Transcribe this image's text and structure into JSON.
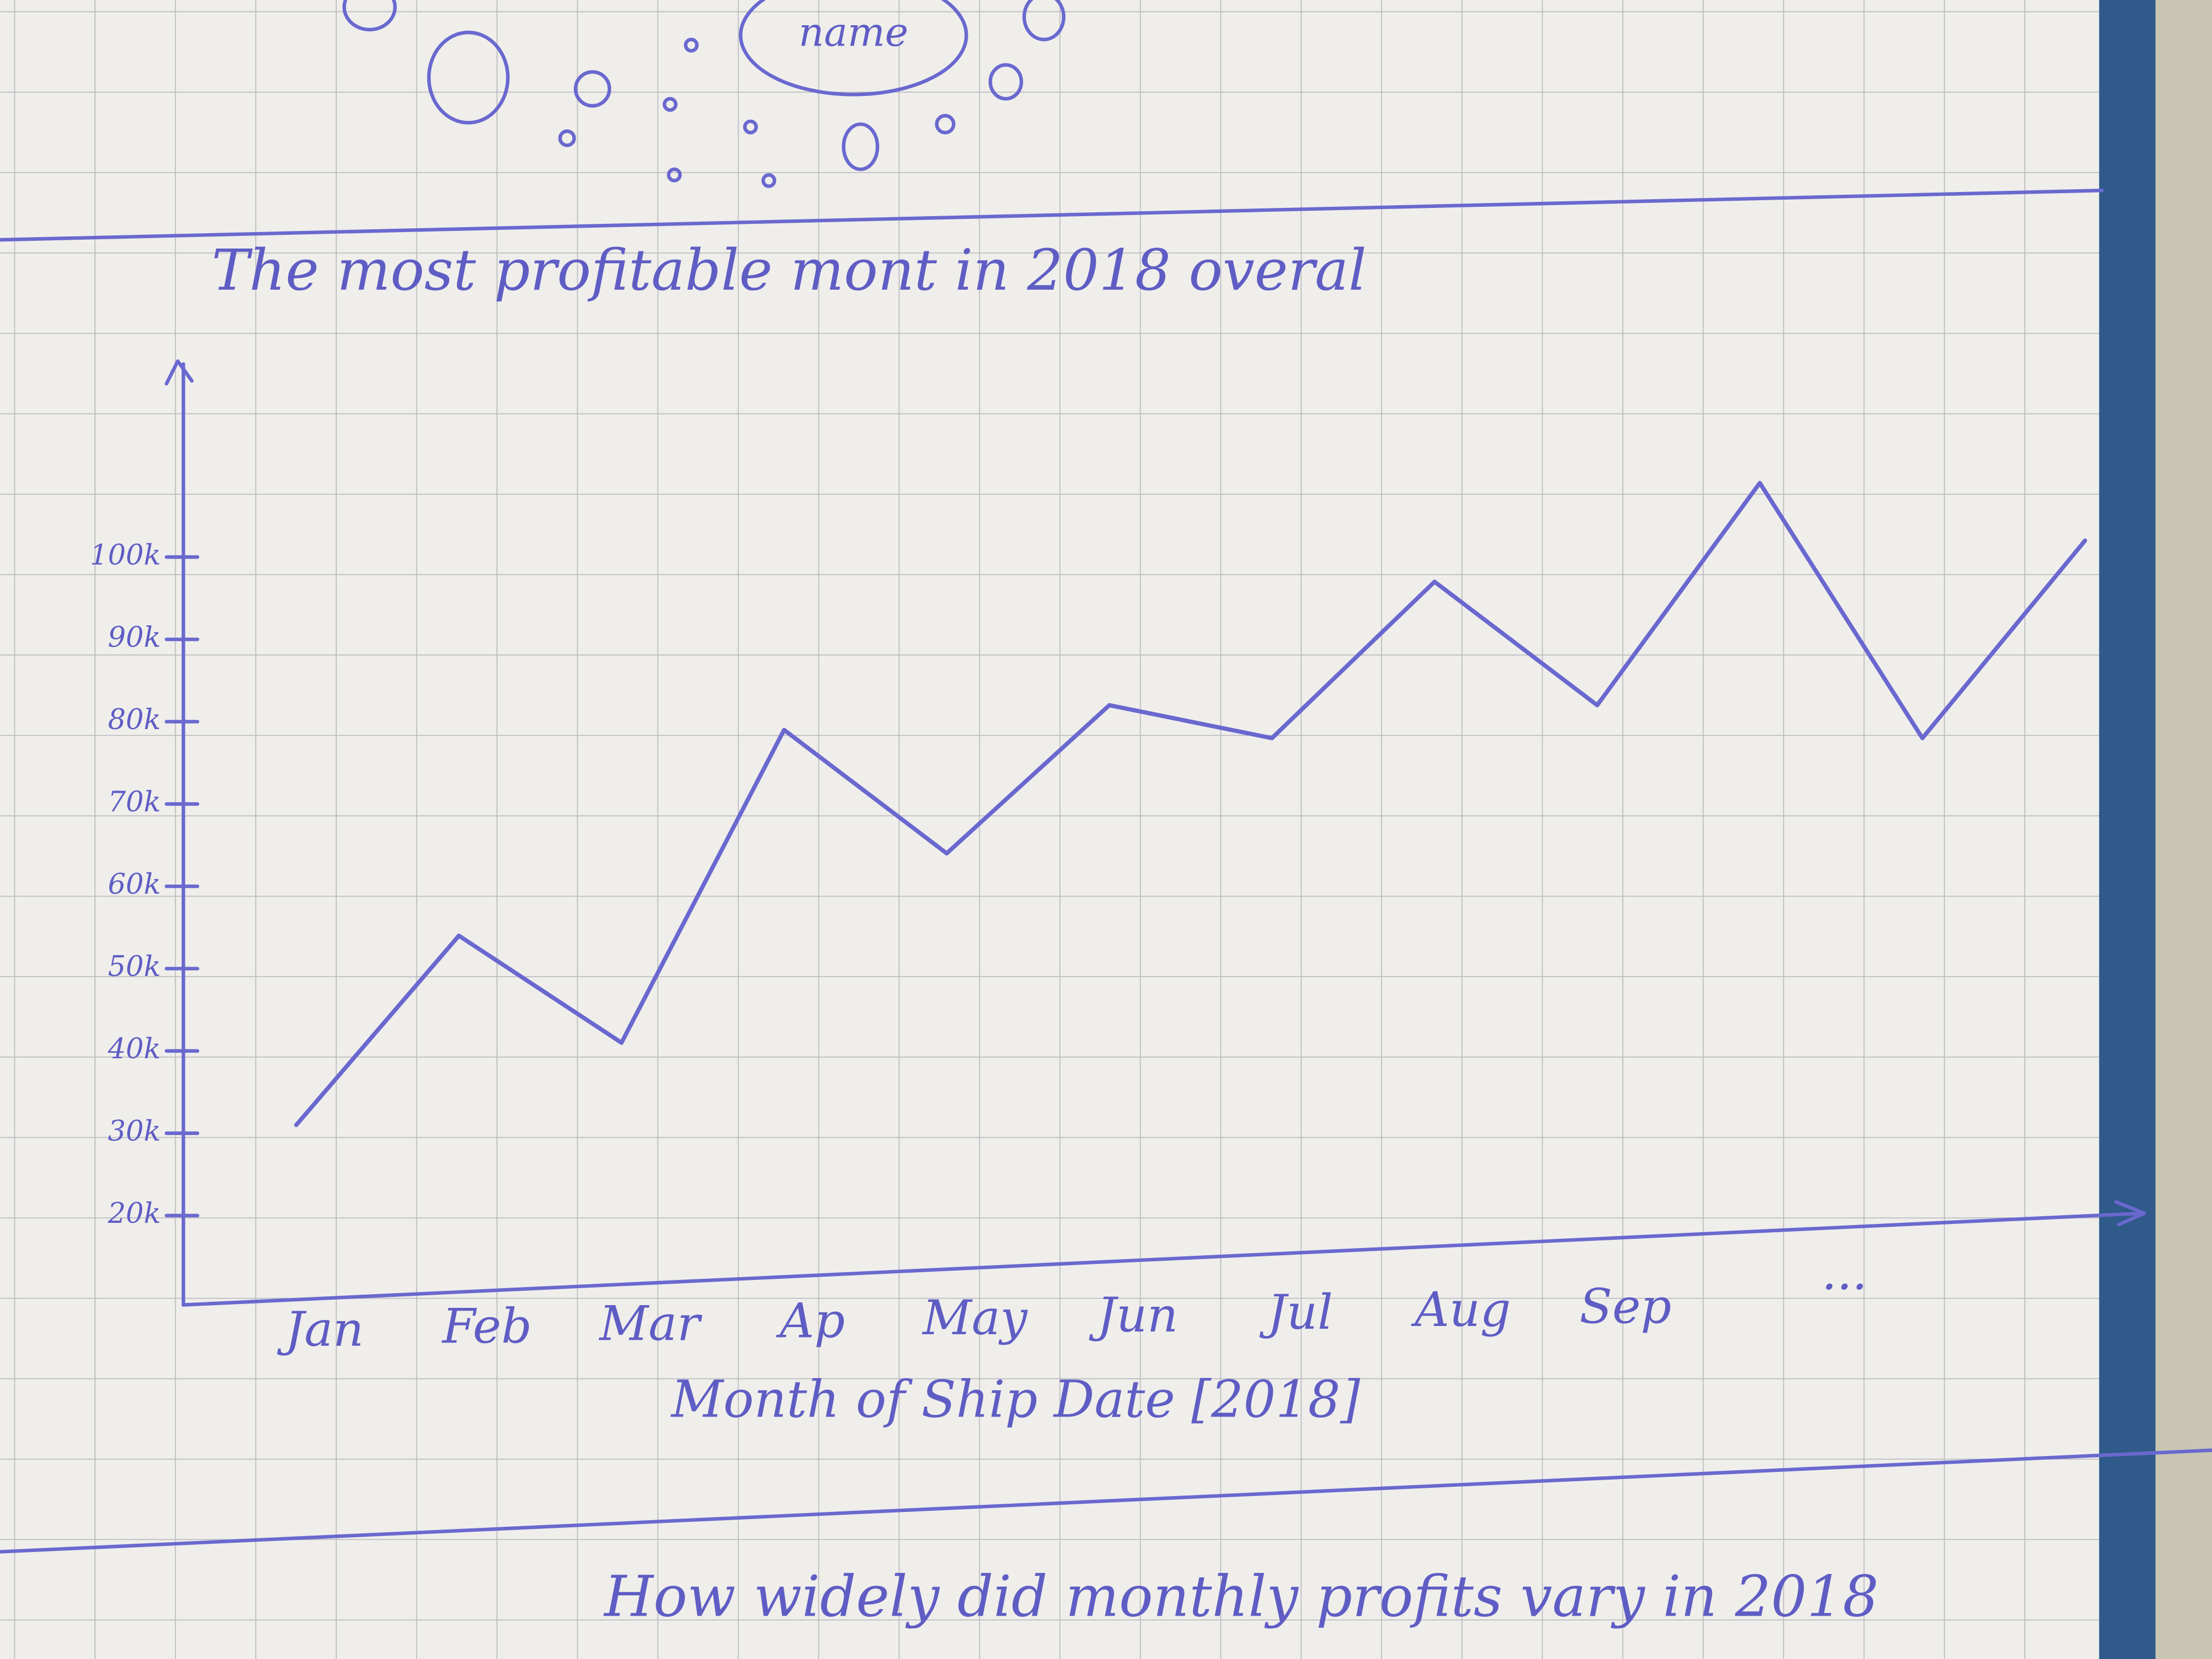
{
  "header": {
    "bubble_label": "name"
  },
  "chart_data": {
    "type": "line",
    "title": "The most profitable mont in 2018 overal",
    "x_label": "Month of Ship Date [2018]",
    "categories": [
      "Jan",
      "Feb",
      "Mar",
      "Ap",
      "May",
      "Jun",
      "Jul",
      "Aug",
      "Sep",
      null,
      null,
      null
    ],
    "annotation": "...",
    "values": [
      31000,
      54000,
      41000,
      79000,
      64000,
      82000,
      78000,
      97000,
      82000,
      109000,
      78000,
      102000
    ],
    "color": "#6a68cf",
    "ylim": [
      10000,
      125000
    ],
    "yticks": [
      {
        "value": 20000,
        "label": "20k"
      },
      {
        "value": 30000,
        "label": "30k"
      },
      {
        "value": 40000,
        "label": "40k"
      },
      {
        "value": 50000,
        "label": "50k"
      },
      {
        "value": 60000,
        "label": "60k"
      },
      {
        "value": 70000,
        "label": "70k"
      },
      {
        "value": 80000,
        "label": "80k"
      },
      {
        "value": 90000,
        "label": "90k"
      },
      {
        "value": 100000,
        "label": "100k"
      }
    ]
  },
  "footer": {
    "question": "How widely did monthly profits vary in 2018"
  }
}
